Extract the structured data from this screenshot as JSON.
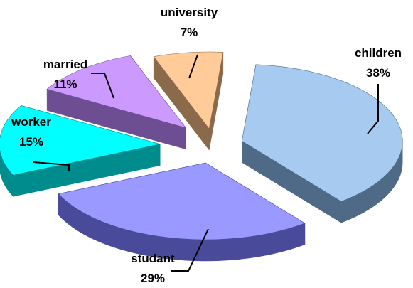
{
  "chart_data": {
    "type": "pie",
    "style": "3d-exploded",
    "title": "",
    "legend": "none",
    "slices": [
      {
        "label": "children",
        "value": 38,
        "value_label": "38%",
        "color": "#A6CAF0",
        "side_color": "#4F6A87"
      },
      {
        "label": "studant",
        "value": 29,
        "value_label": "29%",
        "color": "#9999FF",
        "side_color": "#4A4A9A"
      },
      {
        "label": "worker",
        "value": 15,
        "value_label": "15%",
        "color": "#00FFFF",
        "side_color": "#008C8C"
      },
      {
        "label": "married",
        "value": 11,
        "value_label": "11%",
        "color": "#CC99FF",
        "side_color": "#6E4E92"
      },
      {
        "label": "university",
        "value": 7,
        "value_label": "7%",
        "color": "#FFCC99",
        "side_color": "#8A6A4A"
      }
    ]
  }
}
